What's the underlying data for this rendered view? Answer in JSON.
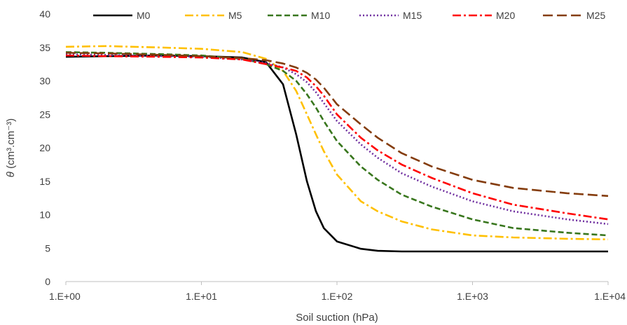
{
  "chart_data": {
    "type": "line",
    "xscale": "log",
    "xlim": [
      1,
      10000
    ],
    "ylim": [
      0,
      40
    ],
    "xlabel": "Soil suction (hPa)",
    "ylabel_symbol": "θ",
    "ylabel_units": " (cm³.cm⁻³)",
    "x_ticks": [
      1,
      10,
      100,
      1000,
      10000
    ],
    "x_tick_labels": [
      "1.E+00",
      "1.E+01",
      "1.E+02",
      "1.E+03",
      "1.E+04"
    ],
    "y_ticks": [
      0,
      5,
      10,
      15,
      20,
      25,
      30,
      35,
      40
    ],
    "y_tick_labels": [
      "0",
      "5",
      "10",
      "15",
      "20",
      "25",
      "30",
      "35",
      "40"
    ],
    "grid": false,
    "legend_position": "top",
    "x": [
      1,
      2,
      5,
      10,
      20,
      30,
      40,
      50,
      60,
      70,
      80,
      100,
      150,
      200,
      300,
      500,
      1000,
      2000,
      5000,
      10000
    ],
    "series": [
      {
        "name": "M0",
        "color": "#000000",
        "dash": "solid",
        "values": [
          33.6,
          33.7,
          33.8,
          33.7,
          33.5,
          32.8,
          29.5,
          22.0,
          15.0,
          10.5,
          8.0,
          6.0,
          4.9,
          4.6,
          4.5,
          4.5,
          4.5,
          4.5,
          4.5,
          4.5
        ]
      },
      {
        "name": "M5",
        "color": "#FFC000",
        "dash": "dashdot",
        "values": [
          35.1,
          35.2,
          35.0,
          34.8,
          34.3,
          33.3,
          31.5,
          28.5,
          25.0,
          22.0,
          19.5,
          16.0,
          12.0,
          10.5,
          9.0,
          7.8,
          6.9,
          6.6,
          6.4,
          6.3
        ]
      },
      {
        "name": "M10",
        "color": "#38761D",
        "dash": "dash",
        "values": [
          34.3,
          34.2,
          34.0,
          33.8,
          33.3,
          32.5,
          31.5,
          30.0,
          28.0,
          26.0,
          24.0,
          21.0,
          17.2,
          15.2,
          13.0,
          11.2,
          9.3,
          8.0,
          7.3,
          6.9
        ]
      },
      {
        "name": "M15",
        "color": "#7030A0",
        "dash": "dot",
        "values": [
          34.0,
          33.9,
          33.7,
          33.6,
          33.2,
          32.7,
          32.0,
          31.0,
          29.8,
          28.3,
          26.7,
          24.0,
          20.5,
          18.5,
          16.2,
          14.2,
          12.0,
          10.5,
          9.3,
          8.6
        ]
      },
      {
        "name": "M20",
        "color": "#FF0000",
        "dash": "dashdot",
        "values": [
          33.8,
          33.7,
          33.6,
          33.5,
          33.2,
          32.5,
          32.0,
          31.5,
          30.5,
          29.2,
          27.8,
          25.0,
          21.5,
          19.6,
          17.5,
          15.5,
          13.2,
          11.5,
          10.2,
          9.3
        ]
      },
      {
        "name": "M25",
        "color": "#843C0C",
        "dash": "longdash",
        "values": [
          34.2,
          34.1,
          33.9,
          33.7,
          33.4,
          33.1,
          32.6,
          32.0,
          31.2,
          30.2,
          29.0,
          26.5,
          23.5,
          21.5,
          19.2,
          17.2,
          15.2,
          14.0,
          13.2,
          12.8
        ]
      }
    ]
  }
}
